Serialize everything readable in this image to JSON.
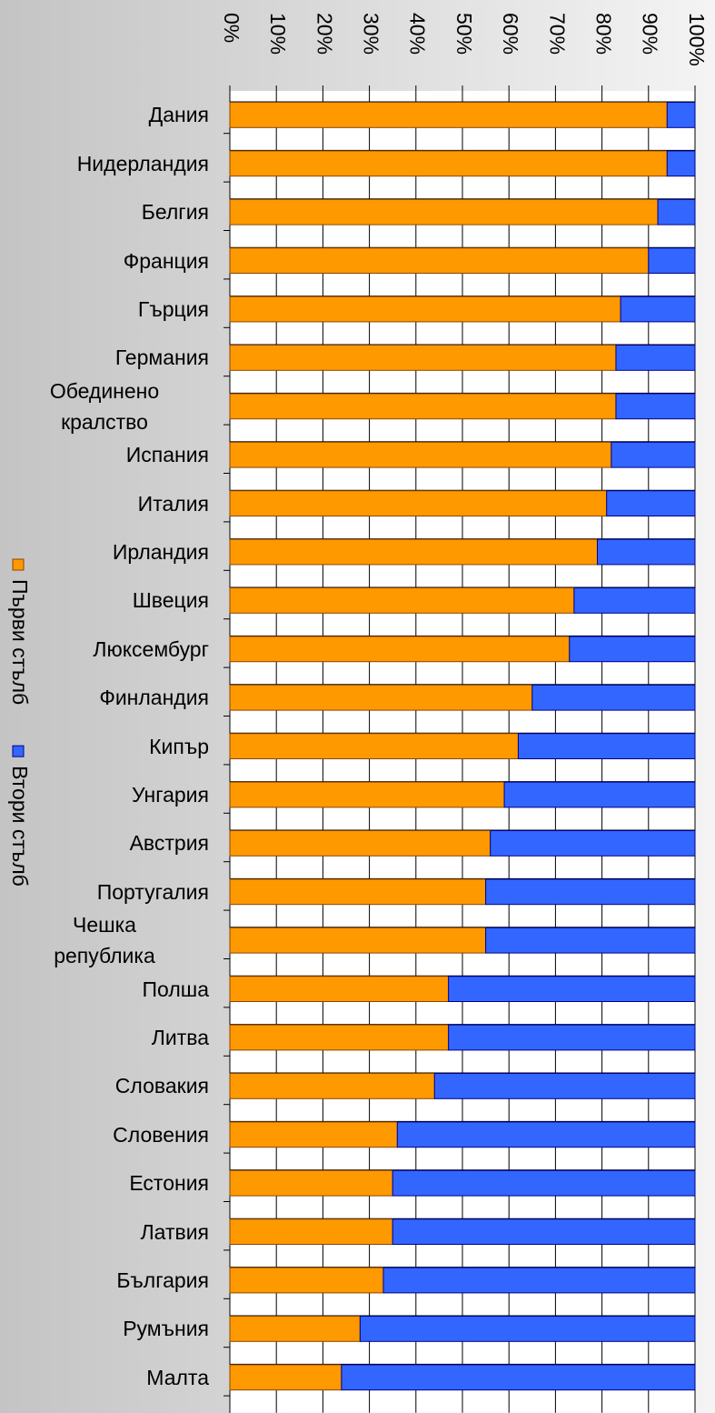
{
  "chart_data": {
    "type": "stacked_barh",
    "categories": [
      "Дания",
      "Нидерландия",
      "Белгия",
      "Франция",
      "Гърция",
      "Германия",
      "Обединено\nкралство",
      "Испания",
      "Италия",
      "Ирландия",
      "Швеция",
      "Люксембург",
      "Финландия",
      "Кипър",
      "Унгария",
      "Австрия",
      "Португалия",
      "Чешка\nрепублика",
      "Полша",
      "Литва",
      "Словакия",
      "Словения",
      "Естония",
      "Латвия",
      "България",
      "Румъния",
      "Малта"
    ],
    "series": [
      {
        "name": "Първи стълб",
        "color": "#ff9900",
        "values": [
          94,
          94,
          92,
          90,
          84,
          83,
          83,
          82,
          81,
          79,
          74,
          73,
          65,
          62,
          59,
          56,
          55,
          55,
          47,
          47,
          44,
          36,
          35,
          35,
          33,
          28,
          24
        ]
      },
      {
        "name": "Втори стълб",
        "color": "#3366ff",
        "values": [
          6,
          6,
          8,
          10,
          16,
          17,
          17,
          18,
          19,
          21,
          26,
          27,
          35,
          38,
          41,
          44,
          45,
          45,
          53,
          53,
          56,
          64,
          65,
          65,
          67,
          72,
          76
        ]
      }
    ],
    "xlim": [
      0,
      100
    ],
    "xticks": [
      {
        "value": 0,
        "label": "0%"
      },
      {
        "value": 10,
        "label": "10%"
      },
      {
        "value": 20,
        "label": "20%"
      },
      {
        "value": 30,
        "label": "30%"
      },
      {
        "value": 40,
        "label": "40%"
      },
      {
        "value": 50,
        "label": "50%"
      },
      {
        "value": 60,
        "label": "60%"
      },
      {
        "value": 70,
        "label": "70%"
      },
      {
        "value": 80,
        "label": "80%"
      },
      {
        "value": 90,
        "label": "90%"
      },
      {
        "value": 100,
        "label": "100%"
      }
    ],
    "grid": true
  }
}
